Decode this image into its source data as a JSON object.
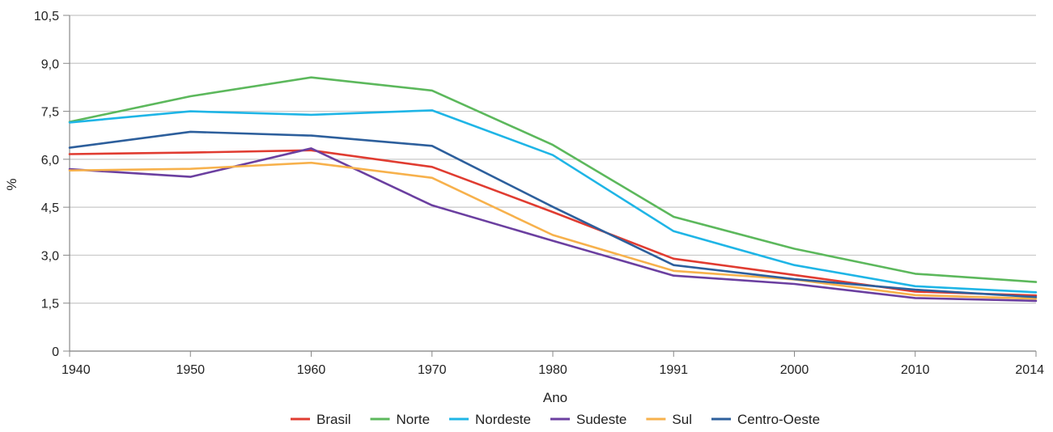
{
  "chart_data": {
    "type": "line",
    "xlabel": "Ano",
    "ylabel": "%",
    "ylim": [
      0,
      10.5
    ],
    "yticks": [
      "0",
      "1,5",
      "3,0",
      "4,5",
      "6,0",
      "7,5",
      "9,0",
      "10,5"
    ],
    "y_tick_values": [
      0,
      1.5,
      3.0,
      4.5,
      6.0,
      7.5,
      9.0,
      10.5
    ],
    "categories": [
      "1940",
      "1950",
      "1960",
      "1970",
      "1980",
      "1991",
      "2000",
      "2010",
      "2014"
    ],
    "grid": true,
    "legend_position": "bottom",
    "series": [
      {
        "name": "Brasil",
        "color": "#e03c31",
        "values": [
          6.16,
          6.21,
          6.28,
          5.76,
          4.35,
          2.89,
          2.38,
          1.86,
          1.74
        ]
      },
      {
        "name": "Norte",
        "color": "#5cb85c",
        "values": [
          7.17,
          7.97,
          8.56,
          8.15,
          6.45,
          4.2,
          3.2,
          2.42,
          2.16
        ]
      },
      {
        "name": "Nordeste",
        "color": "#1fb5e6",
        "values": [
          7.15,
          7.5,
          7.39,
          7.53,
          6.13,
          3.75,
          2.69,
          2.03,
          1.84
        ]
      },
      {
        "name": "Sudeste",
        "color": "#6b3fa0",
        "values": [
          5.69,
          5.45,
          6.34,
          4.56,
          3.45,
          2.36,
          2.1,
          1.66,
          1.57
        ]
      },
      {
        "name": "Sul",
        "color": "#f7b14c",
        "values": [
          5.65,
          5.7,
          5.89,
          5.42,
          3.63,
          2.51,
          2.24,
          1.75,
          1.64
        ]
      },
      {
        "name": "Centro-Oeste",
        "color": "#2d5f9c",
        "values": [
          6.36,
          6.86,
          6.74,
          6.42,
          4.51,
          2.69,
          2.25,
          1.92,
          1.69
        ]
      }
    ]
  }
}
